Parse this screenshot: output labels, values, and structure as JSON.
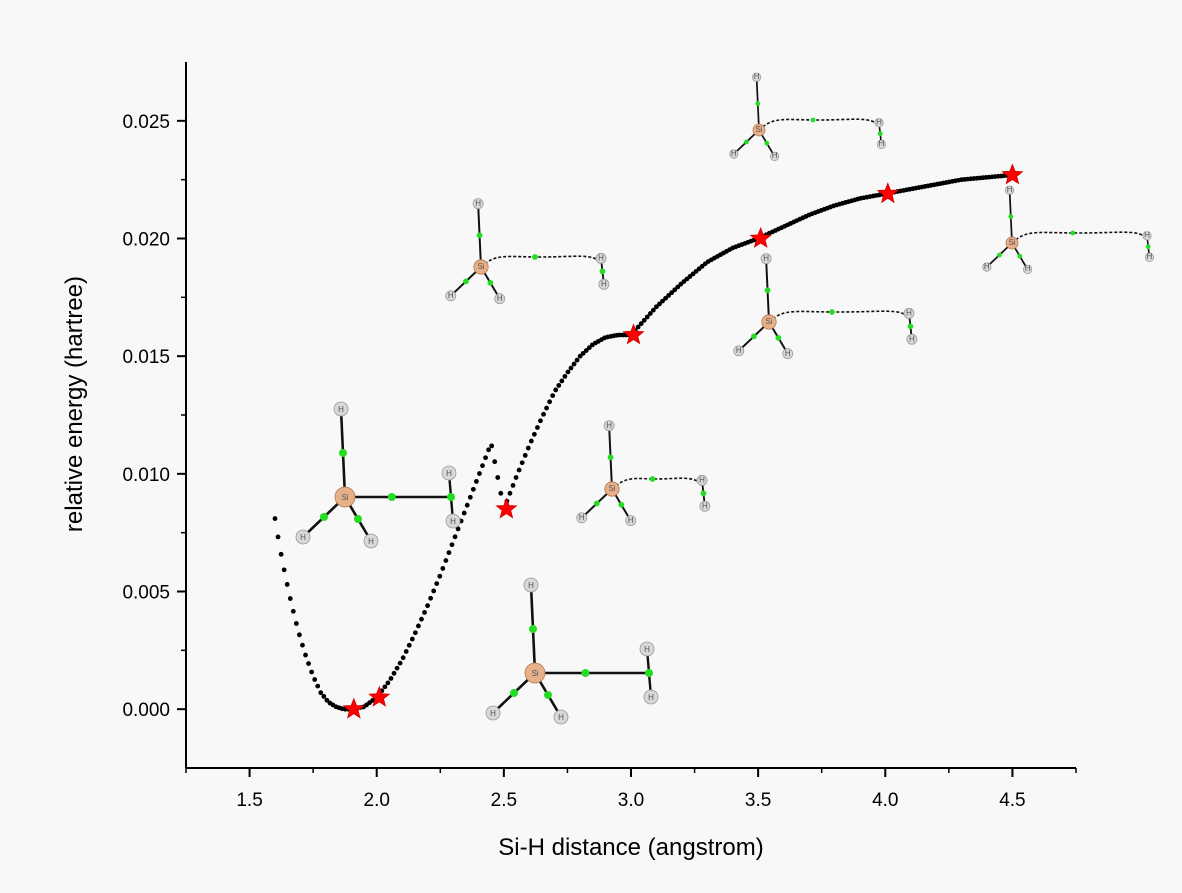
{
  "chart_data": {
    "type": "scatter",
    "title": "",
    "xlabel": "Si-H distance (angstrom)",
    "ylabel": "relative energy (hartree)",
    "xlim": [
      1.25,
      4.75
    ],
    "ylim": [
      -0.0025,
      0.0275
    ],
    "x_ticks": [
      1.5,
      2.0,
      2.5,
      3.0,
      3.5,
      4.0,
      4.5
    ],
    "x_tick_labels": [
      "1.5",
      "2.0",
      "2.5",
      "3.0",
      "3.5",
      "4.0",
      "4.5"
    ],
    "y_ticks": [
      0.0,
      0.005,
      0.01,
      0.015,
      0.02,
      0.025
    ],
    "y_tick_labels": [
      "0.000",
      "0.005",
      "0.010",
      "0.015",
      "0.020",
      "0.025"
    ],
    "grid": false,
    "legend": "none",
    "series": [
      {
        "marker": "dot",
        "color": "#000000",
        "x": [
          1.6,
          1.62,
          1.64,
          1.66,
          1.68,
          1.7,
          1.72,
          1.75,
          1.78,
          1.81,
          1.84,
          1.87,
          1.9,
          1.95,
          2.0,
          2.05,
          2.1,
          2.15,
          2.2,
          2.25,
          2.3,
          2.35,
          2.4,
          2.45,
          2.5,
          2.55,
          2.6,
          2.65,
          2.7,
          2.75,
          2.8,
          2.85,
          2.9,
          2.95,
          3.0,
          3.1,
          3.2,
          3.3,
          3.4,
          3.5,
          3.6,
          3.7,
          3.8,
          3.9,
          4.0,
          4.1,
          4.2,
          4.3,
          4.4,
          4.5
        ],
        "y": [
          0.0081,
          0.0068,
          0.0057,
          0.0047,
          0.0038,
          0.003,
          0.0023,
          0.0014,
          0.0007,
          0.0003,
          0.0001,
          0.0,
          0.0,
          0.0001,
          0.0005,
          0.0012,
          0.0021,
          0.0032,
          0.0044,
          0.0057,
          0.0071,
          0.0085,
          0.0099,
          0.0113,
          0.0085,
          0.0099,
          0.0112,
          0.0124,
          0.0135,
          0.0143,
          0.015,
          0.0155,
          0.0158,
          0.0159,
          0.0159,
          0.0171,
          0.0181,
          0.019,
          0.0196,
          0.02,
          0.0205,
          0.021,
          0.0214,
          0.0217,
          0.0219,
          0.0221,
          0.0223,
          0.0225,
          0.0226,
          0.0227
        ]
      },
      {
        "marker": "star",
        "color": "#ff0000",
        "x": [
          1.91,
          2.01,
          2.51,
          3.01,
          3.51,
          4.01,
          4.5
        ],
        "y": [
          0.0,
          0.0005,
          0.0085,
          0.0159,
          0.02,
          0.0219,
          0.0227
        ]
      }
    ],
    "insets": [
      {
        "name": "structure-1-9",
        "atom_label": "Si",
        "h_label": "H",
        "x": 1.91,
        "y": 0.0,
        "scale": 1.0,
        "bond": "solid"
      },
      {
        "name": "structure-2-0",
        "atom_label": "Si",
        "h_label": "H",
        "x": 2.01,
        "y": 0.0005,
        "scale": 1.0,
        "bond": "solid"
      },
      {
        "name": "structure-2-5",
        "atom_label": "Si",
        "h_label": "H",
        "x": 2.51,
        "y": 0.0085,
        "scale": 0.72,
        "bond": "dashed"
      },
      {
        "name": "structure-3-0",
        "atom_label": "Si",
        "h_label": "H",
        "x": 3.01,
        "y": 0.0159,
        "scale": 0.72,
        "bond": "dashed"
      },
      {
        "name": "structure-3-5",
        "atom_label": "Si",
        "h_label": "H",
        "x": 3.51,
        "y": 0.02,
        "scale": 0.72,
        "bond": "dashed"
      },
      {
        "name": "structure-4-0",
        "atom_label": "Si",
        "h_label": "H",
        "x": 4.01,
        "y": 0.0219,
        "scale": 0.6,
        "bond": "dashed"
      },
      {
        "name": "structure-4-5",
        "atom_label": "Si",
        "h_label": "H",
        "x": 4.5,
        "y": 0.0227,
        "scale": 0.6,
        "bond": "dashed"
      }
    ],
    "colors": {
      "silicon": "#e8b088",
      "hydrogen": "#d8d8d8",
      "bond_point": "#22dd22",
      "star": "#ff0000",
      "curve": "#000000"
    }
  }
}
